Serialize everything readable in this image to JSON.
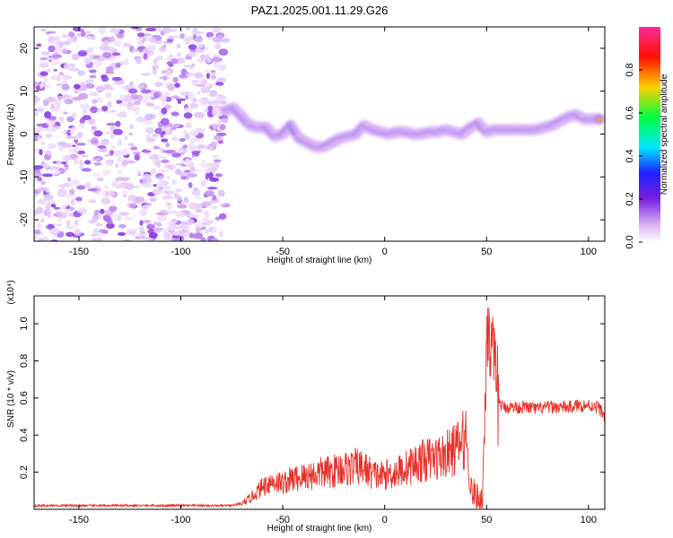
{
  "title": "PAZ1.2025.001.11.29.G26",
  "colors": {
    "snr_line": "#e8322a",
    "axis": "#000000"
  },
  "colormap": [
    "#ffffff",
    "#d9b3f5",
    "#7a1fe0",
    "#2020ff",
    "#00e8ff",
    "#00ff40",
    "#ffd000",
    "#ff1000",
    "#ff2a9a"
  ],
  "chart_data": [
    {
      "type": "heatmap",
      "title": "PAZ1.2025.001.11.29.G26",
      "xlabel": "Height of straight line (km)",
      "ylabel": "Frequency (Hz)",
      "xlim": [
        -172,
        108
      ],
      "ylim": [
        -25,
        25
      ],
      "xticks": [
        -150,
        -100,
        -50,
        0,
        50,
        100
      ],
      "yticks": [
        -20,
        -10,
        0,
        10,
        20
      ],
      "noise_region_x": [
        -172,
        -78
      ],
      "ridge": [
        {
          "x": -78,
          "y": 5.5,
          "a": 0.55
        },
        {
          "x": -74,
          "y": 6,
          "a": 0.5
        },
        {
          "x": -70,
          "y": 4,
          "a": 0.6
        },
        {
          "x": -66,
          "y": 2,
          "a": 0.45
        },
        {
          "x": -62,
          "y": 1.5,
          "a": 0.3
        },
        {
          "x": -58,
          "y": 1.5,
          "a": 0.3
        },
        {
          "x": -54,
          "y": -0.5,
          "a": 0.35
        },
        {
          "x": -50,
          "y": 0,
          "a": 0.3
        },
        {
          "x": -46,
          "y": 2,
          "a": 0.3
        },
        {
          "x": -42,
          "y": -1,
          "a": 0.35
        },
        {
          "x": -38,
          "y": -2,
          "a": 0.4
        },
        {
          "x": -34,
          "y": -3,
          "a": 0.35
        },
        {
          "x": -30,
          "y": -3,
          "a": 0.4
        },
        {
          "x": -26,
          "y": -2,
          "a": 0.4
        },
        {
          "x": -22,
          "y": -1,
          "a": 0.45
        },
        {
          "x": -18,
          "y": -0.5,
          "a": 0.5
        },
        {
          "x": -14,
          "y": 0,
          "a": 0.55
        },
        {
          "x": -10,
          "y": 2,
          "a": 0.5
        },
        {
          "x": -6,
          "y": 1,
          "a": 0.45
        },
        {
          "x": -2,
          "y": 0.5,
          "a": 0.6
        },
        {
          "x": 2,
          "y": 0,
          "a": 0.85
        },
        {
          "x": 6,
          "y": 0.5,
          "a": 0.7
        },
        {
          "x": 10,
          "y": 0.5,
          "a": 0.6
        },
        {
          "x": 14,
          "y": 0,
          "a": 0.55
        },
        {
          "x": 18,
          "y": 0,
          "a": 0.6
        },
        {
          "x": 22,
          "y": 0.5,
          "a": 0.55
        },
        {
          "x": 26,
          "y": 0.5,
          "a": 0.55
        },
        {
          "x": 30,
          "y": 1,
          "a": 0.5
        },
        {
          "x": 34,
          "y": 0.5,
          "a": 0.5
        },
        {
          "x": 38,
          "y": 0,
          "a": 0.45
        },
        {
          "x": 42,
          "y": 1.5,
          "a": 0.4
        },
        {
          "x": 46,
          "y": 2.5,
          "a": 0.35
        },
        {
          "x": 50,
          "y": 0.5,
          "a": 0.5
        },
        {
          "x": 54,
          "y": 1,
          "a": 0.55
        },
        {
          "x": 58,
          "y": 1,
          "a": 0.6
        },
        {
          "x": 62,
          "y": 1,
          "a": 0.75
        },
        {
          "x": 66,
          "y": 1,
          "a": 0.8
        },
        {
          "x": 70,
          "y": 1,
          "a": 0.85
        },
        {
          "x": 74,
          "y": 1,
          "a": 0.7
        },
        {
          "x": 78,
          "y": 1.5,
          "a": 0.6
        },
        {
          "x": 82,
          "y": 2,
          "a": 0.55
        },
        {
          "x": 86,
          "y": 3,
          "a": 0.5
        },
        {
          "x": 90,
          "y": 4,
          "a": 0.55
        },
        {
          "x": 94,
          "y": 4.5,
          "a": 0.5
        },
        {
          "x": 98,
          "y": 3.5,
          "a": 0.6
        },
        {
          "x": 102,
          "y": 3.5,
          "a": 0.85
        },
        {
          "x": 106,
          "y": 3.5,
          "a": 0.75
        }
      ],
      "colorbar": {
        "label": "Normalized spectral amplitude",
        "range": [
          0,
          1
        ],
        "ticks": [
          "0.0",
          "0.2",
          "0.4",
          "0.6",
          "0.8"
        ]
      }
    },
    {
      "type": "line",
      "xlabel": "Height of straight line (km)",
      "ylabel": "SNR (10 * v/v)",
      "scale_label": "(x10⁴)",
      "xlim": [
        -172,
        108
      ],
      "ylim": [
        0,
        1.15
      ],
      "xticks": [
        -150,
        -100,
        -50,
        0,
        50,
        100
      ],
      "yticks": [
        "0.2",
        "0.4",
        "0.6",
        "0.8",
        "1.0"
      ],
      "series": [
        {
          "x": [
            -172,
            -150,
            -120,
            -90,
            -75,
            -70,
            -66,
            -62,
            -58,
            -54,
            -50,
            -46,
            -42,
            -38,
            -34,
            -30,
            -26,
            -22,
            -18,
            -14,
            -10,
            -6,
            -2,
            2,
            6,
            10,
            14,
            18,
            22,
            26,
            30,
            34,
            38,
            40,
            42,
            44,
            46,
            48,
            50,
            51,
            52,
            54,
            56,
            58,
            60,
            65,
            70,
            75,
            80,
            85,
            90,
            95,
            100,
            105,
            108
          ],
          "y": [
            0.02,
            0.02,
            0.02,
            0.02,
            0.02,
            0.03,
            0.06,
            0.1,
            0.14,
            0.15,
            0.14,
            0.16,
            0.17,
            0.18,
            0.19,
            0.2,
            0.2,
            0.22,
            0.22,
            0.23,
            0.22,
            0.19,
            0.18,
            0.19,
            0.2,
            0.22,
            0.24,
            0.26,
            0.27,
            0.28,
            0.29,
            0.32,
            0.36,
            0.4,
            0.12,
            0.08,
            0.06,
            0.05,
            0.9,
            1.08,
            0.85,
            0.7,
            0.58,
            0.55,
            0.55,
            0.55,
            0.55,
            0.54,
            0.55,
            0.55,
            0.55,
            0.56,
            0.56,
            0.55,
            0.5
          ]
        }
      ]
    }
  ]
}
